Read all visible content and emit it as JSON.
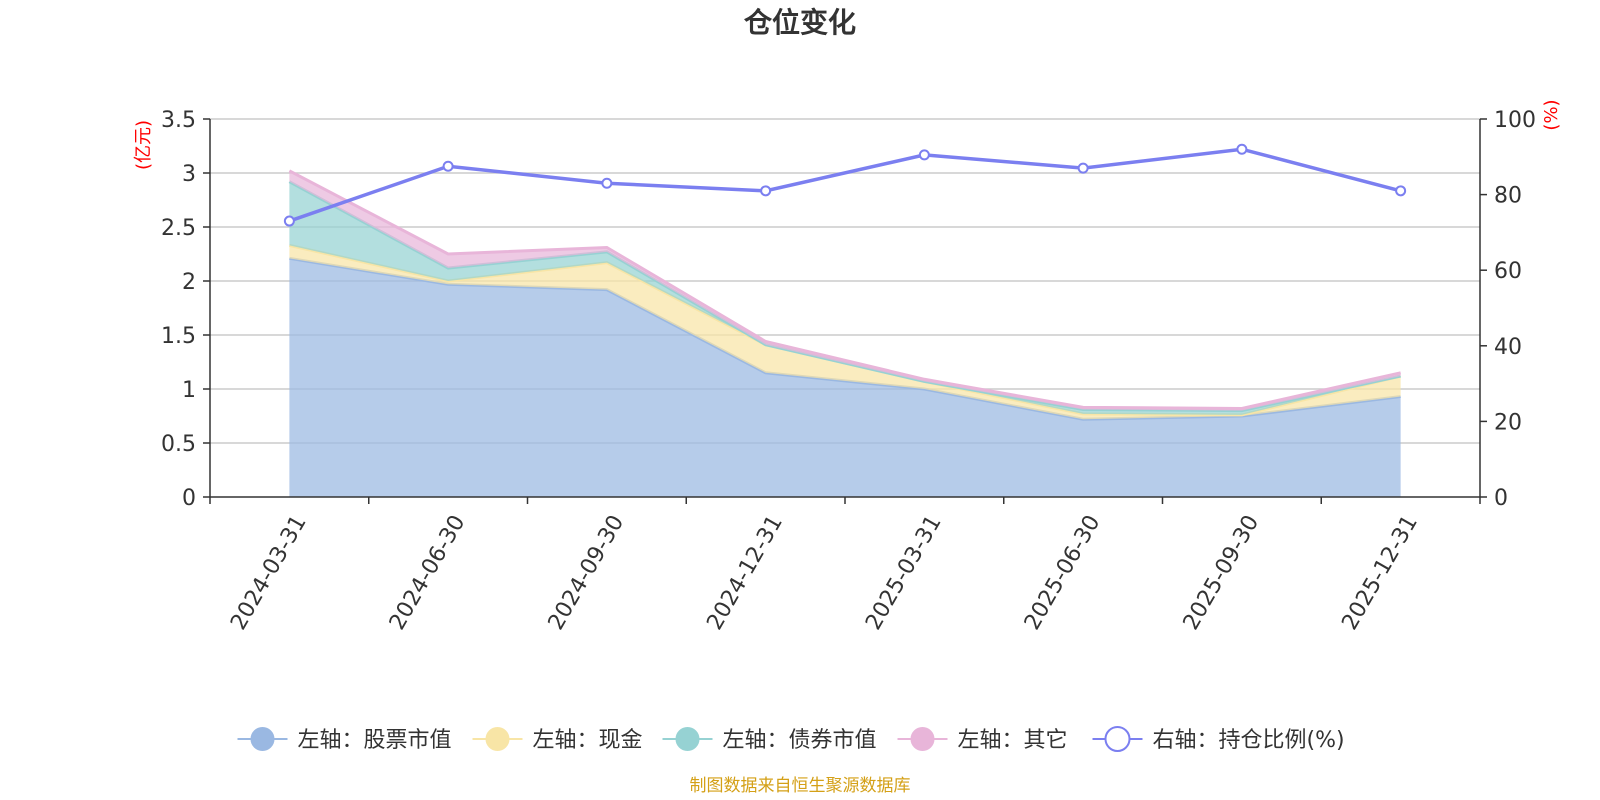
{
  "chart_data": {
    "type": "area",
    "title": "仓位变化",
    "categories": [
      "2024-03-31",
      "2024-06-30",
      "2024-09-30",
      "2024-12-31",
      "2025-03-31",
      "2025-06-30",
      "2025-09-30",
      "2025-12-31"
    ],
    "left_axis": {
      "unit_label": "(亿元)",
      "ylim": [
        0,
        3.5
      ],
      "ticks": [
        "0",
        "0.5",
        "1",
        "1.5",
        "2",
        "2.5",
        "3",
        "3.5"
      ]
    },
    "right_axis": {
      "unit_label": "(%)",
      "ylim": [
        0,
        100
      ],
      "ticks": [
        "0",
        "20",
        "40",
        "60",
        "80",
        "100"
      ]
    },
    "series": [
      {
        "name": "左轴：股票市值",
        "type": "area",
        "axis": "left",
        "stack": true,
        "color": "#9ab8e2",
        "values": [
          2.21,
          1.97,
          1.92,
          1.15,
          1.0,
          0.72,
          0.75,
          0.93
        ]
      },
      {
        "name": "左轴：现金",
        "type": "area",
        "axis": "left",
        "stack": true,
        "color": "#f8e5a6",
        "values": [
          0.12,
          0.03,
          0.25,
          0.26,
          0.07,
          0.05,
          0.01,
          0.19
        ]
      },
      {
        "name": "左轴：债券市值",
        "type": "area",
        "axis": "left",
        "stack": true,
        "color": "#96d2d3",
        "values": [
          0.59,
          0.12,
          0.1,
          0.0,
          0.0,
          0.04,
          0.04,
          0.0
        ]
      },
      {
        "name": "左轴：其它",
        "type": "area",
        "axis": "left",
        "stack": true,
        "color": "#e8b5d9",
        "values": [
          0.1,
          0.13,
          0.04,
          0.03,
          0.02,
          0.02,
          0.02,
          0.03
        ]
      },
      {
        "name": "右轴：持仓比例(%)",
        "type": "line",
        "axis": "right",
        "color": "#7b7ff0",
        "values": [
          73,
          87.5,
          83,
          81,
          90.5,
          87,
          92,
          81
        ]
      }
    ],
    "legend_position": "bottom",
    "grid": true
  },
  "source_note": "制图数据来自恒生聚源数据库",
  "colors": {
    "title": "#333333",
    "axis": "#333333",
    "grid": "#cccccc",
    "unit_label": "#ff0000",
    "source_note": "#d4a017"
  }
}
